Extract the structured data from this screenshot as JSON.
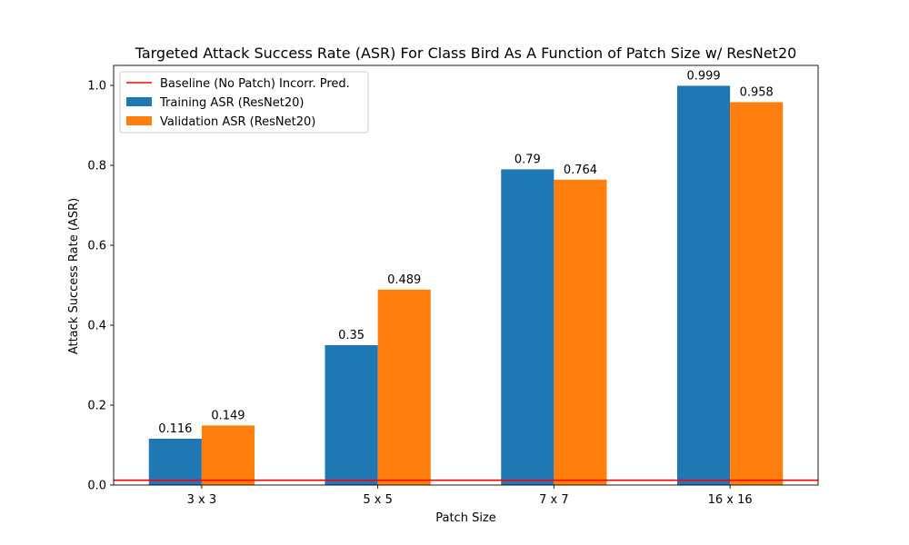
{
  "chart_data": {
    "type": "bar",
    "title": "Targeted Attack Success Rate (ASR) For Class Bird As A Function of Patch Size w/ ResNet20",
    "xlabel": "Patch Size",
    "ylabel": "Attack Success Rate (ASR)",
    "categories": [
      "3 x 3",
      "5 x 5",
      "7 x 7",
      "16 x 16"
    ],
    "ylim": [
      0,
      1.05
    ],
    "yticks": [
      0.0,
      0.2,
      0.4,
      0.6,
      0.8,
      1.0
    ],
    "ytick_labels": [
      "0.0",
      "0.2",
      "0.4",
      "0.6",
      "0.8",
      "1.0"
    ],
    "grid": false,
    "legend_position": "top-left",
    "series": [
      {
        "name": "Training ASR (ResNet20)",
        "color": "#1f77b4",
        "values": [
          0.116,
          0.35,
          0.79,
          0.999
        ],
        "labels": [
          "0.116",
          "0.35",
          "0.79",
          "0.999"
        ]
      },
      {
        "name": "Validation ASR (ResNet20)",
        "color": "#ff7f0e",
        "values": [
          0.149,
          0.489,
          0.764,
          0.958
        ],
        "labels": [
          "0.149",
          "0.489",
          "0.764",
          "0.958"
        ]
      }
    ],
    "baseline": {
      "name": "Baseline (No Patch) Incorr. Pred.",
      "value": 0.012,
      "color": "#ff0000"
    }
  }
}
